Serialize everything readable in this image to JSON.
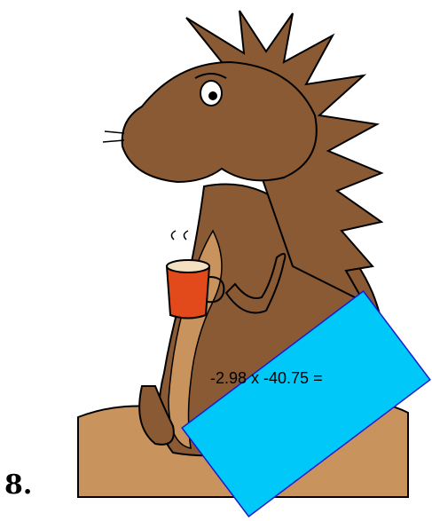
{
  "problem_number": "8.",
  "problem": "-2.98 x -40.75 ="
}
